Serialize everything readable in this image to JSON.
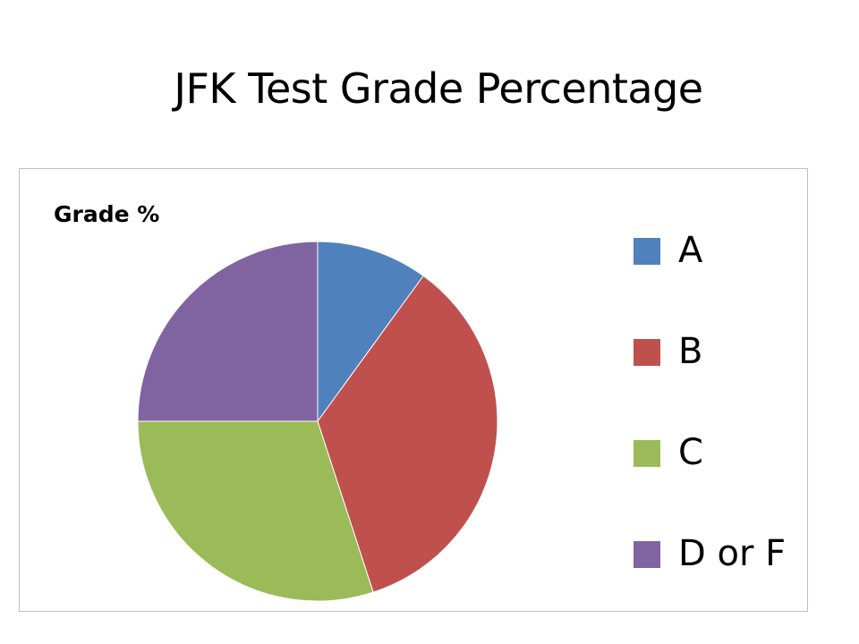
{
  "slide": {
    "title": "JFK Test Grade Percentage"
  },
  "chart_data": {
    "type": "pie",
    "title": "Grade %",
    "categories": [
      "A",
      "B",
      "C",
      "D or F"
    ],
    "values": [
      10,
      35,
      30,
      25
    ],
    "colors": [
      "#4f81bd",
      "#c0504d",
      "#9bbb59",
      "#8064a2"
    ],
    "legend_position": "right",
    "start_angle_deg": 0,
    "direction": "clockwise"
  }
}
